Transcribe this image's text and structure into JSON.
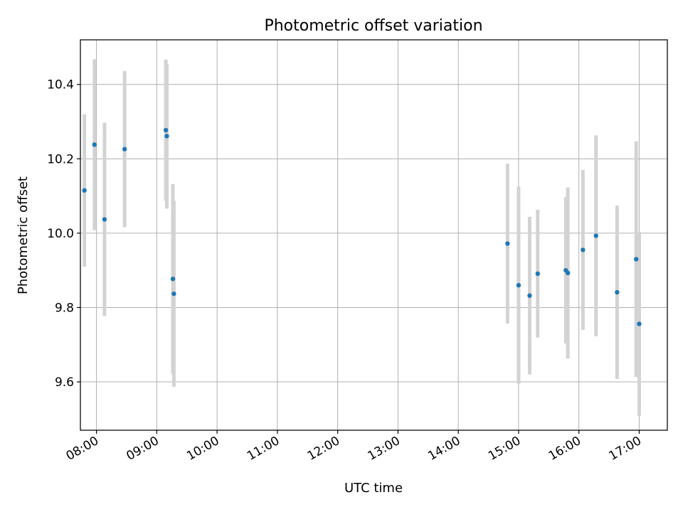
{
  "chart_data": {
    "type": "scatter",
    "title": "Photometric offset variation",
    "xlabel": "UTC time",
    "ylabel": "Photometric offset",
    "x_ticks": [
      "08:00",
      "09:00",
      "10:00",
      "11:00",
      "12:00",
      "13:00",
      "14:00",
      "15:00",
      "16:00",
      "17:00"
    ],
    "y_ticks": [
      "9.6",
      "9.8",
      "10.0",
      "10.2",
      "10.4"
    ],
    "xlim": [
      "07:44",
      "17:28"
    ],
    "ylim": [
      9.47,
      10.52
    ],
    "grid": true,
    "colors": {
      "point": "#1f77b4",
      "errorbar": "#d3d3d3",
      "grid": "#b0b0b0"
    },
    "points": [
      {
        "time": "07:48",
        "y": 10.115,
        "err": 0.205
      },
      {
        "time": "07:58",
        "y": 10.238,
        "err": 0.23
      },
      {
        "time": "08:08",
        "y": 10.037,
        "err": 0.26
      },
      {
        "time": "08:28",
        "y": 10.226,
        "err": 0.21
      },
      {
        "time": "09:09",
        "y": 10.277,
        "err": 0.19
      },
      {
        "time": "09:10",
        "y": 10.261,
        "err": 0.195
      },
      {
        "time": "09:16",
        "y": 9.877,
        "err": 0.255
      },
      {
        "time": "09:17",
        "y": 9.837,
        "err": 0.25
      },
      {
        "time": "14:49",
        "y": 9.972,
        "err": 0.215
      },
      {
        "time": "15:00",
        "y": 9.86,
        "err": 0.265
      },
      {
        "time": "15:11",
        "y": 9.832,
        "err": 0.212
      },
      {
        "time": "15:19",
        "y": 9.891,
        "err": 0.172
      },
      {
        "time": "15:47",
        "y": 9.9,
        "err": 0.197
      },
      {
        "time": "15:49",
        "y": 9.893,
        "err": 0.23
      },
      {
        "time": "16:04",
        "y": 9.955,
        "err": 0.215
      },
      {
        "time": "16:17",
        "y": 9.993,
        "err": 0.27
      },
      {
        "time": "16:38",
        "y": 9.841,
        "err": 0.233
      },
      {
        "time": "16:57",
        "y": 9.93,
        "err": 0.317
      },
      {
        "time": "17:00",
        "y": 9.756,
        "err": 0.247
      }
    ]
  }
}
